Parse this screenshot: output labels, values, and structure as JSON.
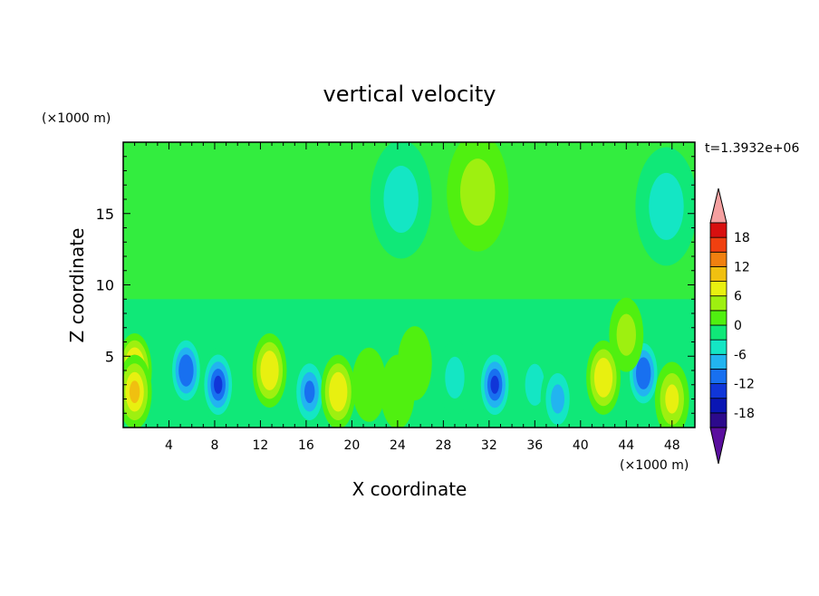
{
  "chart_data": {
    "type": "heatmap",
    "title": "vertical velocity",
    "xlabel": "X coordinate",
    "ylabel": "Z coordinate",
    "x_unit_label": "(×1000 m)",
    "y_unit_label": "(×1000 m)",
    "time_label": "t=1.3932e+06",
    "xlim": [
      0,
      50
    ],
    "ylim": [
      0,
      20
    ],
    "x_ticks": [
      4,
      8,
      12,
      16,
      20,
      24,
      28,
      32,
      36,
      40,
      44,
      48
    ],
    "y_ticks": [
      5,
      10,
      15
    ],
    "colorbar": {
      "levels": [
        -21,
        -18,
        -15,
        -12,
        -9,
        -6,
        -3,
        0,
        3,
        6,
        9,
        12,
        15,
        18,
        21
      ],
      "tick_labels": [
        -18,
        -12,
        -6,
        0,
        6,
        12,
        18
      ],
      "extend": "both",
      "colors": [
        "#5a0e9e",
        "#2c0a8c",
        "#0a16b4",
        "#1036d8",
        "#1870f0",
        "#22b4f0",
        "#14e6c4",
        "#10e878",
        "#50f010",
        "#9ef010",
        "#e8f010",
        "#f0c010",
        "#f08010",
        "#f04010",
        "#d81010",
        "#f5a0a0"
      ]
    },
    "cells": [
      {
        "x": 1.0,
        "z": 4.0,
        "value": 14
      },
      {
        "x": 1.0,
        "z": 2.5,
        "value": 10
      },
      {
        "x": 5.5,
        "z": 4.0,
        "value": -12
      },
      {
        "x": 8.3,
        "z": 3.0,
        "value": -13
      },
      {
        "x": 12.8,
        "z": 4.0,
        "value": 9
      },
      {
        "x": 16.3,
        "z": 2.5,
        "value": -11
      },
      {
        "x": 18.8,
        "z": 2.5,
        "value": 9
      },
      {
        "x": 21.5,
        "z": 3.0,
        "value": 3
      },
      {
        "x": 24.0,
        "z": 2.5,
        "value": 3
      },
      {
        "x": 25.5,
        "z": 4.5,
        "value": 3
      },
      {
        "x": 29.0,
        "z": 3.5,
        "value": -5
      },
      {
        "x": 32.5,
        "z": 3.0,
        "value": -13
      },
      {
        "x": 36.0,
        "z": 3.0,
        "value": -5
      },
      {
        "x": 38.0,
        "z": 2.0,
        "value": -8
      },
      {
        "x": 42.0,
        "z": 3.5,
        "value": 9
      },
      {
        "x": 45.5,
        "z": 3.8,
        "value": -12
      },
      {
        "x": 44.0,
        "z": 6.5,
        "value": 5
      },
      {
        "x": 48.0,
        "z": 2.0,
        "value": 7
      },
      {
        "x": 24.3,
        "z": 16.0,
        "value": -4
      },
      {
        "x": 31.0,
        "z": 16.5,
        "value": 5
      },
      {
        "x": 47.5,
        "z": 15.5,
        "value": -4
      }
    ]
  }
}
